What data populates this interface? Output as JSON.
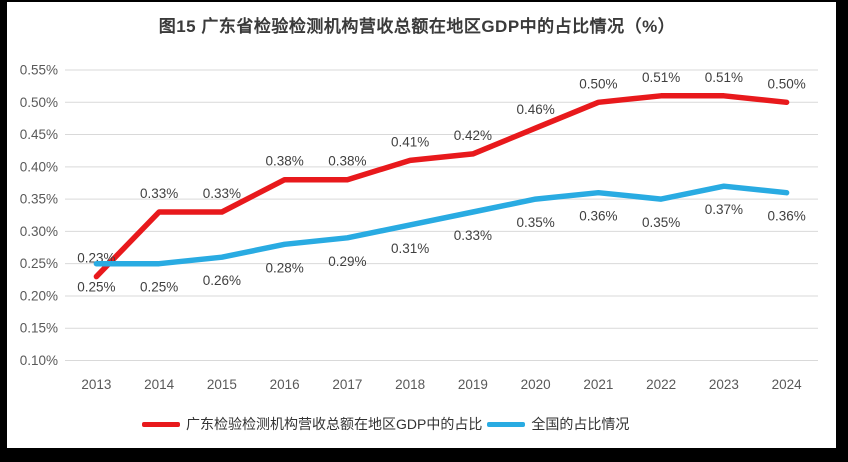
{
  "title": "图15  广东省检验检测机构营收总额在地区GDP中的占比情况（%）",
  "chart_data": {
    "type": "line",
    "categories": [
      "2013",
      "2014",
      "2015",
      "2016",
      "2017",
      "2018",
      "2019",
      "2020",
      "2021",
      "2022",
      "2023",
      "2024"
    ],
    "series": [
      {
        "key": "guangdong",
        "name": "广东检验检测机构营收总额在地区GDP中的占比",
        "color": "#e8191c",
        "values": [
          0.23,
          0.33,
          0.33,
          0.38,
          0.38,
          0.41,
          0.42,
          0.46,
          0.5,
          0.51,
          0.51,
          0.5
        ],
        "labels": [
          "0.23%",
          "0.33%",
          "0.33%",
          "0.38%",
          "0.38%",
          "0.41%",
          "0.42%",
          "0.46%",
          "0.50%",
          "0.51%",
          "0.51%",
          "0.50%"
        ],
        "label_position": "above"
      },
      {
        "key": "national",
        "name": "全国的占比情况",
        "color": "#29abe2",
        "values": [
          0.25,
          0.25,
          0.26,
          0.28,
          0.29,
          0.31,
          0.33,
          0.35,
          0.36,
          0.35,
          0.37,
          0.36
        ],
        "labels": [
          "0.25%",
          "0.25%",
          "0.26%",
          "0.28%",
          "0.29%",
          "0.31%",
          "0.33%",
          "0.35%",
          "0.36%",
          "0.35%",
          "0.37%",
          "0.36%"
        ],
        "label_position": "below"
      }
    ],
    "ylim": [
      0.1,
      0.55
    ],
    "y_tick_step": 0.05,
    "y_ticks": [
      "0.10%",
      "0.15%",
      "0.20%",
      "0.25%",
      "0.30%",
      "0.35%",
      "0.40%",
      "0.45%",
      "0.50%",
      "0.55%"
    ],
    "grid": true,
    "legend_position": "bottom"
  },
  "colors": {
    "grid": "#d9d9d9",
    "axis_text": "#595959",
    "data_label_text": "#404040",
    "title_text": "#3a3a3a",
    "frame": "#000000",
    "background": "#ffffff"
  }
}
